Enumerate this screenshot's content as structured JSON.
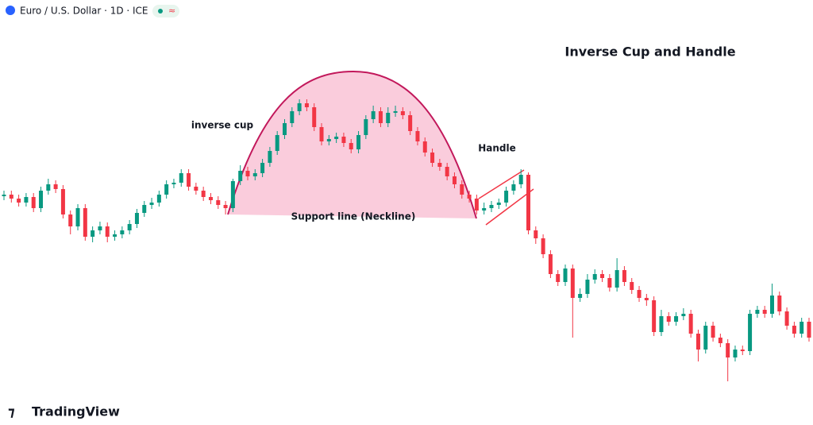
{
  "header": {
    "symbol": "Euro / U.S. Dollar · 1D · ICE",
    "logo": "TradingView"
  },
  "chart_data": {
    "type": "candlestick",
    "title": "Inverse Cup and Handle",
    "annotations": [
      "inverse cup",
      "Handle",
      "Support line (Neckline)"
    ],
    "up_color": "#089981",
    "down_color": "#f23645",
    "ylim": [
      0,
      535
    ],
    "open": [
      288,
      290,
      285,
      280,
      287,
      273,
      295,
      303,
      297,
      265,
      250,
      273,
      237,
      245,
      250,
      237,
      240,
      245,
      253,
      267,
      277,
      280,
      290,
      303,
      305,
      317,
      300,
      295,
      287,
      283,
      277,
      273,
      307,
      320,
      313,
      317,
      330,
      345,
      365,
      380,
      395,
      405,
      400,
      375,
      357,
      360,
      363,
      355,
      347,
      365,
      385,
      395,
      380,
      393,
      395,
      390,
      370,
      357,
      343,
      330,
      325,
      313,
      303,
      290,
      285,
      270,
      273,
      277,
      280,
      295,
      303,
      315,
      245,
      235,
      215,
      190,
      180,
      197,
      160,
      165,
      183,
      190,
      185,
      173,
      195,
      180,
      170,
      160,
      157,
      117,
      137,
      130,
      137,
      140,
      115,
      95,
      125,
      110,
      103,
      85,
      95,
      93,
      140,
      145,
      140,
      163,
      143,
      125,
      115,
      130
    ],
    "high": [
      295,
      295,
      290,
      292,
      292,
      300,
      310,
      308,
      302,
      270,
      278,
      278,
      250,
      256,
      255,
      245,
      250,
      258,
      272,
      282,
      286,
      295,
      308,
      310,
      322,
      322,
      305,
      300,
      292,
      288,
      282,
      310,
      327,
      325,
      322,
      335,
      350,
      370,
      385,
      400,
      410,
      410,
      405,
      380,
      365,
      368,
      368,
      360,
      370,
      390,
      402,
      400,
      400,
      402,
      400,
      395,
      375,
      362,
      348,
      335,
      330,
      318,
      308,
      295,
      290,
      280,
      282,
      285,
      300,
      308,
      322,
      318,
      250,
      240,
      220,
      195,
      202,
      202,
      172,
      190,
      196,
      195,
      190,
      210,
      200,
      185,
      175,
      165,
      162,
      145,
      142,
      142,
      147,
      145,
      120,
      130,
      130,
      115,
      108,
      100,
      100,
      145,
      150,
      150,
      178,
      168,
      148,
      130,
      135,
      135
    ],
    "low": [
      283,
      280,
      275,
      275,
      268,
      268,
      290,
      292,
      260,
      240,
      245,
      232,
      230,
      240,
      230,
      232,
      235,
      240,
      248,
      262,
      272,
      275,
      285,
      298,
      300,
      295,
      290,
      282,
      278,
      272,
      265,
      268,
      302,
      308,
      308,
      312,
      325,
      340,
      360,
      375,
      390,
      395,
      370,
      352,
      352,
      355,
      350,
      342,
      342,
      360,
      380,
      375,
      375,
      388,
      385,
      365,
      352,
      338,
      325,
      320,
      308,
      298,
      285,
      280,
      265,
      265,
      268,
      272,
      275,
      290,
      298,
      240,
      228,
      210,
      185,
      175,
      175,
      110,
      155,
      160,
      178,
      180,
      168,
      168,
      175,
      165,
      155,
      150,
      112,
      112,
      125,
      125,
      132,
      110,
      80,
      90,
      105,
      98,
      55,
      80,
      88,
      88,
      135,
      135,
      135,
      138,
      120,
      110,
      110,
      105
    ],
    "close": [
      290,
      285,
      280,
      287,
      273,
      295,
      303,
      297,
      265,
      250,
      273,
      237,
      245,
      250,
      237,
      240,
      245,
      253,
      267,
      277,
      280,
      290,
      303,
      305,
      317,
      300,
      295,
      287,
      283,
      277,
      273,
      307,
      320,
      313,
      317,
      330,
      345,
      365,
      380,
      395,
      405,
      400,
      375,
      357,
      360,
      363,
      355,
      347,
      365,
      385,
      395,
      380,
      393,
      395,
      390,
      370,
      357,
      343,
      330,
      325,
      313,
      303,
      290,
      285,
      270,
      273,
      277,
      280,
      295,
      303,
      315,
      245,
      235,
      215,
      190,
      180,
      197,
      160,
      165,
      183,
      190,
      185,
      173,
      195,
      180,
      170,
      160,
      157,
      117,
      137,
      130,
      137,
      140,
      115,
      95,
      125,
      110,
      103,
      85,
      95,
      93,
      140,
      145,
      140,
      163,
      143,
      125,
      115,
      130,
      110
    ]
  }
}
